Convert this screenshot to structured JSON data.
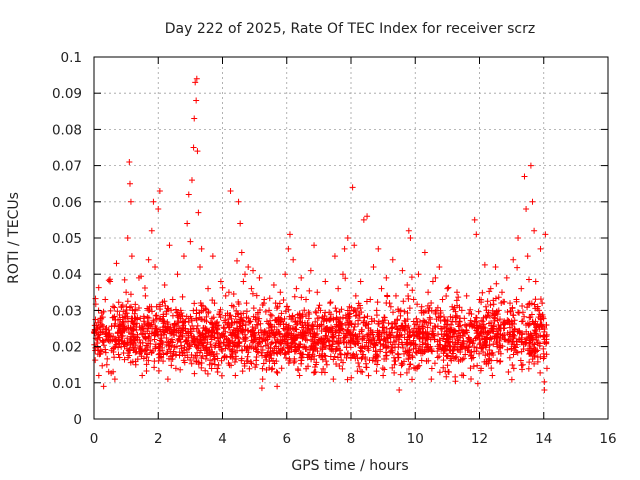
{
  "chart_data": {
    "type": "scatter",
    "title": "Day 222 of 2025, Rate Of TEC Index for receiver scrz",
    "xlabel": "GPS time / hours",
    "ylabel": "ROTI / TECUs",
    "xlim": [
      0,
      16
    ],
    "ylim": [
      0,
      0.1
    ],
    "x_ticks": [
      0,
      2,
      4,
      6,
      8,
      10,
      12,
      14,
      16
    ],
    "x_tick_labels": [
      "0",
      "2",
      "4",
      "6",
      "8",
      "10",
      "12",
      "14",
      "16"
    ],
    "y_ticks": [
      0,
      0.01,
      0.02,
      0.03,
      0.04,
      0.05,
      0.06,
      0.07,
      0.08,
      0.09,
      0.1
    ],
    "y_tick_labels": [
      "0",
      "0.01",
      "0.02",
      "0.03",
      "0.04",
      "0.05",
      "0.06",
      "0.07",
      "0.08",
      "0.09",
      "0.1"
    ],
    "grid": true,
    "marker": "+",
    "series": [
      {
        "name": "ROTI",
        "color": "#ff0000",
        "x_range_data": [
          0,
          14.1
        ],
        "typical_band": [
          0.01,
          0.035
        ],
        "points": [
          [
            0.1,
            0.021
          ],
          [
            0.15,
            0.012
          ],
          [
            0.2,
            0.018
          ],
          [
            0.25,
            0.026
          ],
          [
            0.3,
            0.009
          ],
          [
            0.35,
            0.033
          ],
          [
            0.4,
            0.015
          ],
          [
            0.45,
            0.022
          ],
          [
            0.5,
            0.038
          ],
          [
            0.55,
            0.019
          ],
          [
            0.6,
            0.028
          ],
          [
            0.65,
            0.011
          ],
          [
            0.7,
            0.043
          ],
          [
            0.75,
            0.024
          ],
          [
            0.8,
            0.017
          ],
          [
            0.85,
            0.031
          ],
          [
            0.9,
            0.025
          ],
          [
            0.95,
            0.02
          ],
          [
            1.0,
            0.035
          ],
          [
            1.05,
            0.05
          ],
          [
            1.1,
            0.071
          ],
          [
            1.12,
            0.065
          ],
          [
            1.15,
            0.06
          ],
          [
            1.18,
            0.045
          ],
          [
            1.2,
            0.03
          ],
          [
            1.25,
            0.022
          ],
          [
            1.3,
            0.015
          ],
          [
            1.35,
            0.028
          ],
          [
            1.4,
            0.039
          ],
          [
            1.45,
            0.021
          ],
          [
            1.5,
            0.012
          ],
          [
            1.55,
            0.027
          ],
          [
            1.6,
            0.034
          ],
          [
            1.65,
            0.018
          ],
          [
            1.7,
            0.044
          ],
          [
            1.75,
            0.026
          ],
          [
            1.8,
            0.052
          ],
          [
            1.85,
            0.06
          ],
          [
            1.9,
            0.042
          ],
          [
            1.95,
            0.031
          ],
          [
            2.0,
            0.058
          ],
          [
            2.05,
            0.063
          ],
          [
            2.1,
            0.023
          ],
          [
            2.15,
            0.016
          ],
          [
            2.2,
            0.037
          ],
          [
            2.25,
            0.029
          ],
          [
            2.3,
            0.011
          ],
          [
            2.35,
            0.048
          ],
          [
            2.4,
            0.02
          ],
          [
            2.45,
            0.033
          ],
          [
            2.5,
            0.026
          ],
          [
            2.55,
            0.014
          ],
          [
            2.6,
            0.04
          ],
          [
            2.65,
            0.022
          ],
          [
            2.7,
            0.03
          ],
          [
            2.75,
            0.018
          ],
          [
            2.8,
            0.045
          ],
          [
            2.85,
            0.025
          ],
          [
            2.9,
            0.054
          ],
          [
            2.95,
            0.062
          ],
          [
            3.0,
            0.049
          ],
          [
            3.05,
            0.066
          ],
          [
            3.1,
            0.075
          ],
          [
            3.12,
            0.083
          ],
          [
            3.15,
            0.093
          ],
          [
            3.18,
            0.088
          ],
          [
            3.2,
            0.094
          ],
          [
            3.22,
            0.074
          ],
          [
            3.25,
            0.057
          ],
          [
            3.3,
            0.042
          ],
          [
            3.35,
            0.047
          ],
          [
            3.4,
            0.03
          ],
          [
            3.45,
            0.019
          ],
          [
            3.5,
            0.027
          ],
          [
            3.55,
            0.036
          ],
          [
            3.6,
            0.015
          ],
          [
            3.65,
            0.024
          ],
          [
            3.7,
            0.045
          ],
          [
            3.75,
            0.032
          ],
          [
            3.8,
            0.021
          ],
          [
            3.85,
            0.013
          ],
          [
            3.9,
            0.029
          ],
          [
            3.95,
            0.038
          ],
          [
            4.0,
            0.023
          ],
          [
            4.05,
            0.017
          ],
          [
            4.1,
            0.034
          ],
          [
            4.15,
            0.026
          ],
          [
            4.2,
            0.035
          ],
          [
            4.25,
            0.063
          ],
          [
            4.3,
            0.018
          ],
          [
            4.35,
            0.031
          ],
          [
            4.4,
            0.012
          ],
          [
            4.45,
            0.025
          ],
          [
            4.5,
            0.06
          ],
          [
            4.55,
            0.054
          ],
          [
            4.6,
            0.046
          ],
          [
            4.65,
            0.038
          ],
          [
            4.7,
            0.04
          ],
          [
            4.75,
            0.032
          ],
          [
            4.8,
            0.042
          ],
          [
            4.85,
            0.027
          ],
          [
            4.9,
            0.036
          ],
          [
            4.95,
            0.041
          ],
          [
            5.0,
            0.022
          ],
          [
            5.05,
            0.015
          ],
          [
            5.1,
            0.029
          ],
          [
            5.15,
            0.039
          ],
          [
            5.2,
            0.02
          ],
          [
            5.25,
            0.011
          ],
          [
            5.3,
            0.033
          ],
          [
            5.35,
            0.024
          ],
          [
            5.4,
            0.018
          ],
          [
            5.45,
            0.03
          ],
          [
            5.5,
            0.026
          ],
          [
            5.55,
            0.014
          ],
          [
            5.6,
            0.037
          ],
          [
            5.65,
            0.021
          ],
          [
            5.7,
            0.009
          ],
          [
            5.75,
            0.028
          ],
          [
            5.8,
            0.035
          ],
          [
            5.85,
            0.019
          ],
          [
            5.9,
            0.025
          ],
          [
            5.95,
            0.04
          ],
          [
            6.0,
            0.031
          ],
          [
            6.05,
            0.047
          ],
          [
            6.1,
            0.051
          ],
          [
            6.15,
            0.022
          ],
          [
            6.2,
            0.044
          ],
          [
            6.25,
            0.016
          ],
          [
            6.3,
            0.036
          ],
          [
            6.35,
            0.028
          ],
          [
            6.4,
            0.012
          ],
          [
            6.45,
            0.039
          ],
          [
            6.5,
            0.024
          ],
          [
            6.55,
            0.02
          ],
          [
            6.6,
            0.033
          ],
          [
            6.65,
            0.017
          ],
          [
            6.7,
            0.029
          ],
          [
            6.75,
            0.041
          ],
          [
            6.8,
            0.026
          ],
          [
            6.85,
            0.048
          ],
          [
            6.9,
            0.013
          ],
          [
            6.95,
            0.035
          ],
          [
            7.0,
            0.022
          ],
          [
            7.05,
            0.03
          ],
          [
            7.1,
            0.018
          ],
          [
            7.15,
            0.027
          ],
          [
            7.2,
            0.038
          ],
          [
            7.25,
            0.015
          ],
          [
            7.3,
            0.024
          ],
          [
            7.35,
            0.032
          ],
          [
            7.4,
            0.02
          ],
          [
            7.45,
            0.011
          ],
          [
            7.5,
            0.045
          ],
          [
            7.55,
            0.028
          ],
          [
            7.6,
            0.036
          ],
          [
            7.65,
            0.019
          ],
          [
            7.7,
            0.025
          ],
          [
            7.75,
            0.04
          ],
          [
            7.8,
            0.047
          ],
          [
            7.85,
            0.023
          ],
          [
            7.9,
            0.05
          ],
          [
            7.95,
            0.031
          ],
          [
            8.0,
            0.017
          ],
          [
            8.05,
            0.064
          ],
          [
            8.1,
            0.048
          ],
          [
            8.15,
            0.034
          ],
          [
            8.2,
            0.021
          ],
          [
            8.25,
            0.029
          ],
          [
            8.3,
            0.038
          ],
          [
            8.35,
            0.013
          ],
          [
            8.4,
            0.055
          ],
          [
            8.45,
            0.026
          ],
          [
            8.5,
            0.056
          ],
          [
            8.55,
            0.019
          ],
          [
            8.6,
            0.033
          ],
          [
            8.65,
            0.024
          ],
          [
            8.7,
            0.042
          ],
          [
            8.75,
            0.016
          ],
          [
            8.8,
            0.03
          ],
          [
            8.85,
            0.047
          ],
          [
            8.9,
            0.022
          ],
          [
            8.95,
            0.036
          ],
          [
            9.0,
            0.012
          ],
          [
            9.05,
            0.028
          ],
          [
            9.1,
            0.039
          ],
          [
            9.15,
            0.02
          ],
          [
            9.2,
            0.032
          ],
          [
            9.25,
            0.025
          ],
          [
            9.3,
            0.044
          ],
          [
            9.35,
            0.015
          ],
          [
            9.4,
            0.034
          ],
          [
            9.45,
            0.023
          ],
          [
            9.5,
            0.008
          ],
          [
            9.55,
            0.03
          ],
          [
            9.6,
            0.041
          ],
          [
            9.65,
            0.018
          ],
          [
            9.7,
            0.027
          ],
          [
            9.75,
            0.037
          ],
          [
            9.8,
            0.052
          ],
          [
            9.85,
            0.05
          ],
          [
            9.9,
            0.021
          ],
          [
            9.95,
            0.033
          ],
          [
            10.0,
            0.014
          ],
          [
            10.05,
            0.026
          ],
          [
            10.1,
            0.04
          ],
          [
            10.15,
            0.019
          ],
          [
            10.2,
            0.031
          ],
          [
            10.25,
            0.024
          ],
          [
            10.3,
            0.046
          ],
          [
            10.35,
            0.016
          ],
          [
            10.4,
            0.035
          ],
          [
            10.45,
            0.028
          ],
          [
            10.5,
            0.011
          ],
          [
            10.55,
            0.038
          ],
          [
            10.6,
            0.022
          ],
          [
            10.65,
            0.03
          ],
          [
            10.7,
            0.017
          ],
          [
            10.75,
            0.042
          ],
          [
            10.8,
            0.025
          ],
          [
            10.85,
            0.033
          ],
          [
            10.9,
            0.019
          ],
          [
            10.95,
            0.027
          ],
          [
            11.0,
            0.036
          ],
          [
            11.05,
            0.013
          ],
          [
            11.1,
            0.024
          ],
          [
            11.15,
            0.031
          ],
          [
            11.2,
            0.02
          ],
          [
            11.25,
            0.028
          ],
          [
            11.3,
            0.035
          ],
          [
            11.35,
            0.016
          ],
          [
            11.4,
            0.023
          ],
          [
            11.45,
            0.03
          ],
          [
            11.5,
            0.012
          ],
          [
            11.55,
            0.026
          ],
          [
            11.6,
            0.034
          ],
          [
            11.65,
            0.019
          ],
          [
            11.7,
            0.022
          ],
          [
            11.75,
            0.029
          ],
          [
            11.8,
            0.017
          ],
          [
            11.85,
            0.055
          ],
          [
            11.9,
            0.051
          ],
          [
            11.95,
            0.025
          ],
          [
            12.0,
            0.033
          ],
          [
            12.05,
            0.014
          ],
          [
            12.1,
            0.027
          ],
          [
            12.15,
            0.021
          ],
          [
            12.2,
            0.031
          ],
          [
            12.25,
            0.018
          ],
          [
            12.3,
            0.024
          ],
          [
            12.35,
            0.036
          ],
          [
            12.4,
            0.012
          ],
          [
            12.45,
            0.028
          ],
          [
            12.5,
            0.042
          ],
          [
            12.55,
            0.02
          ],
          [
            12.6,
            0.03
          ],
          [
            12.65,
            0.016
          ],
          [
            12.7,
            0.035
          ],
          [
            12.75,
            0.025
          ],
          [
            12.8,
            0.022
          ],
          [
            12.85,
            0.039
          ],
          [
            12.9,
            0.013
          ],
          [
            12.95,
            0.032
          ],
          [
            13.0,
            0.027
          ],
          [
            13.05,
            0.044
          ],
          [
            13.1,
            0.019
          ],
          [
            13.15,
            0.033
          ],
          [
            13.2,
            0.05
          ],
          [
            13.25,
            0.024
          ],
          [
            13.3,
            0.036
          ],
          [
            13.35,
            0.015
          ],
          [
            13.4,
            0.067
          ],
          [
            13.45,
            0.058
          ],
          [
            13.5,
            0.045
          ],
          [
            13.55,
            0.028
          ],
          [
            13.6,
            0.07
          ],
          [
            13.65,
            0.06
          ],
          [
            13.7,
            0.052
          ],
          [
            13.75,
            0.038
          ],
          [
            13.8,
            0.021
          ],
          [
            13.85,
            0.03
          ],
          [
            13.9,
            0.047
          ],
          [
            13.95,
            0.032
          ],
          [
            14.0,
            0.018
          ],
          [
            14.02,
            0.008
          ],
          [
            14.05,
            0.051
          ],
          [
            14.08,
            0.026
          ],
          [
            14.1,
            0.014
          ]
        ]
      }
    ]
  }
}
